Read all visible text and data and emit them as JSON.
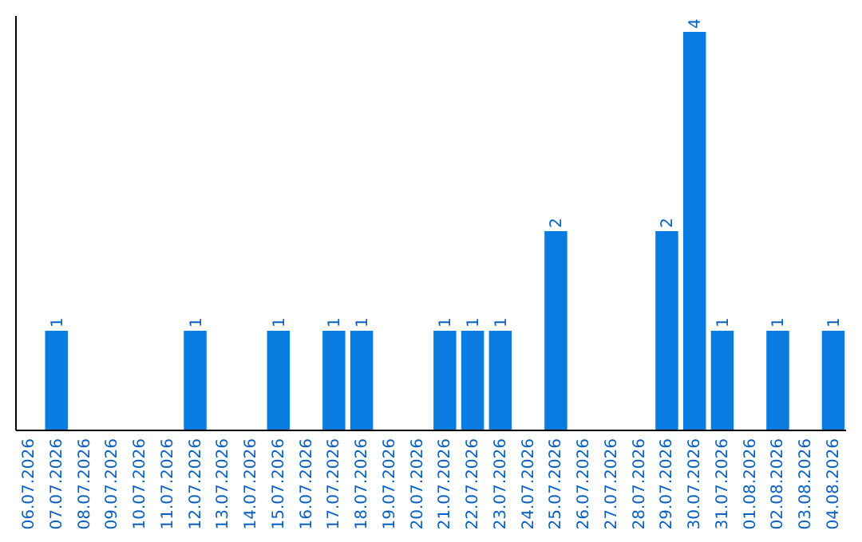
{
  "chart_data": {
    "type": "bar",
    "categories": [
      "06.07.2026",
      "07.07.2026",
      "08.07.2026",
      "09.07.2026",
      "10.07.2026",
      "11.07.2026",
      "12.07.2026",
      "13.07.2026",
      "14.07.2026",
      "15.07.2026",
      "16.07.2026",
      "17.07.2026",
      "18.07.2026",
      "19.07.2026",
      "20.07.2026",
      "21.07.2026",
      "22.07.2026",
      "23.07.2026",
      "24.07.2026",
      "25.07.2026",
      "26.07.2026",
      "27.07.2026",
      "28.07.2026",
      "29.07.2026",
      "30.07.2026",
      "31.07.2026",
      "01.08.2026",
      "02.08.2026",
      "03.08.2026",
      "04.08.2026"
    ],
    "values": [
      0,
      1,
      0,
      0,
      0,
      0,
      1,
      0,
      0,
      1,
      0,
      1,
      1,
      0,
      0,
      1,
      1,
      1,
      0,
      2,
      0,
      0,
      0,
      2,
      4,
      1,
      0,
      1,
      0,
      1
    ],
    "value_labels": [
      null,
      "1",
      null,
      null,
      null,
      null,
      "1",
      null,
      null,
      "1",
      null,
      "1",
      "1",
      null,
      null,
      "1",
      "1",
      "1",
      null,
      "2",
      null,
      null,
      null,
      "2",
      "4",
      "1",
      null,
      "1",
      null,
      "1"
    ],
    "color": "#0a7be0"
  }
}
